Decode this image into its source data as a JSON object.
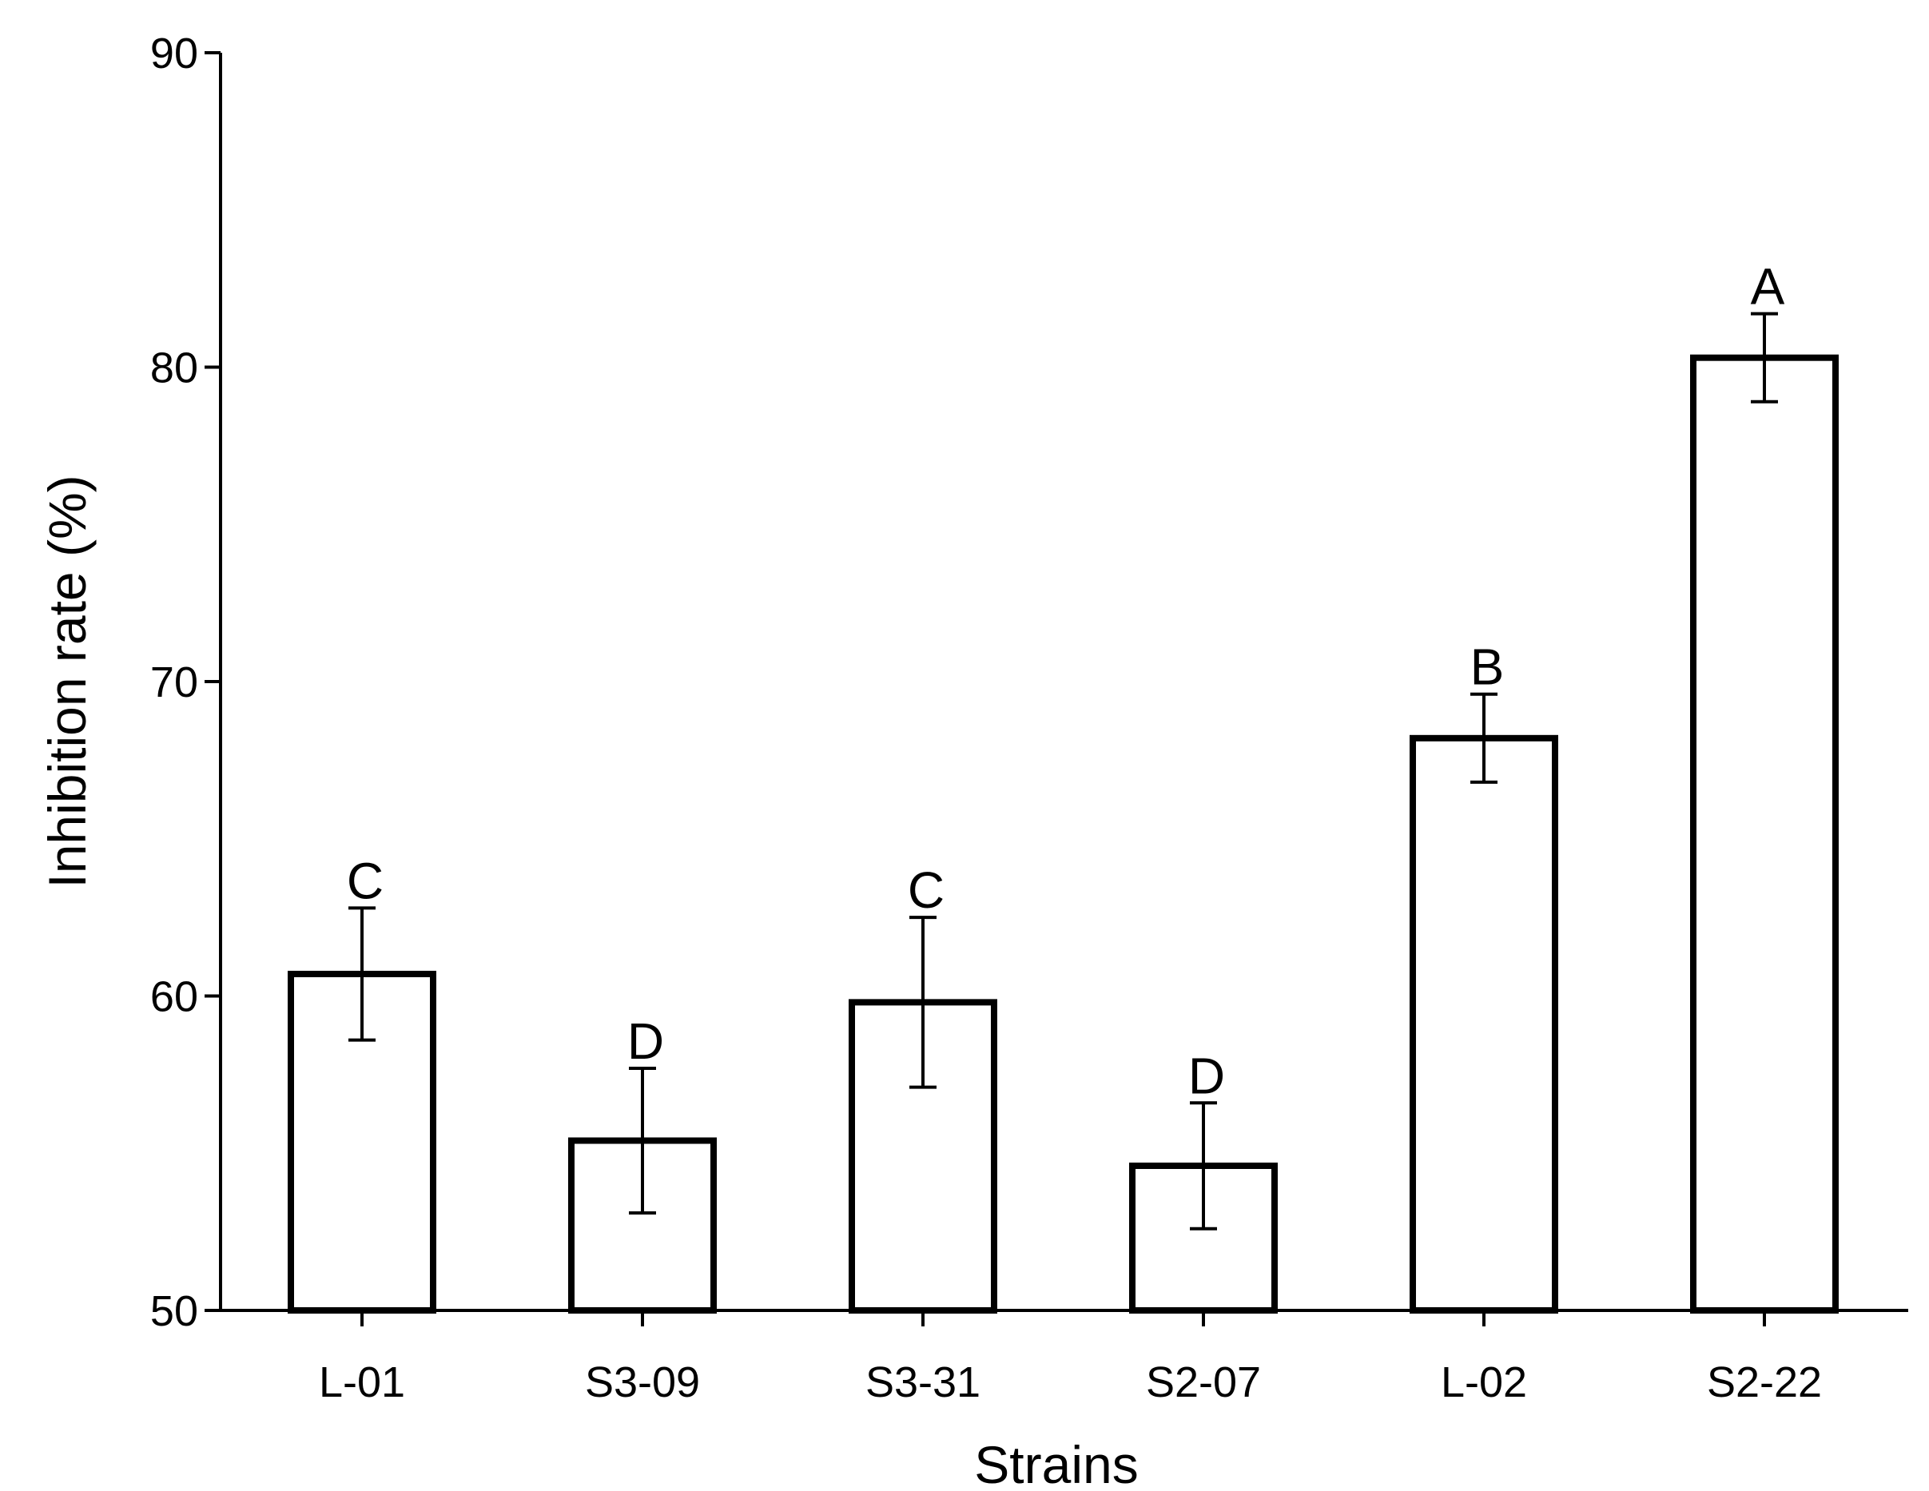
{
  "chart_data": {
    "type": "bar",
    "title": "",
    "xlabel": "Strains",
    "ylabel": "Inhibition rate (%)",
    "ylim": [
      50,
      90
    ],
    "yticks": [
      50,
      60,
      70,
      80,
      90
    ],
    "grid": false,
    "categories": [
      "L-01",
      "S3-09",
      "S3-31",
      "S2-07",
      "L-02",
      "S2-22"
    ],
    "values": [
      60.7,
      55.4,
      59.8,
      54.6,
      68.2,
      80.3
    ],
    "errors": [
      2.1,
      2.3,
      2.7,
      2.0,
      1.4,
      1.4
    ],
    "significance_letters": [
      "C",
      "D",
      "C",
      "D",
      "B",
      "A"
    ],
    "colors": {
      "bar_fill": "#ffffff",
      "bar_stroke": "#000000",
      "axis": "#000000"
    }
  }
}
